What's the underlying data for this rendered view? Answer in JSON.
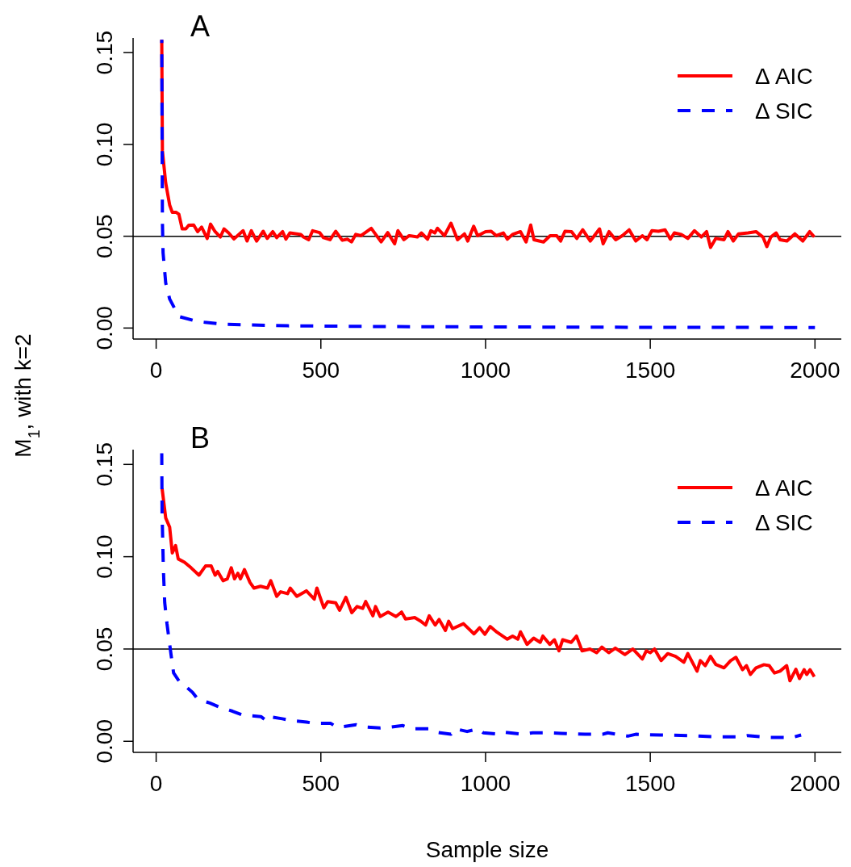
{
  "chart_data": [
    {
      "type": "line",
      "title": "A",
      "ylabel": "M$_{1}$, with k=2",
      "xlim": [
        -70,
        2080
      ],
      "ylim": [
        -0.006,
        0.158
      ],
      "xticks": [
        0,
        500,
        1000,
        1500,
        2000
      ],
      "yticks": [
        {
          "value": 0,
          "label": "0.00"
        },
        {
          "value": 0.05,
          "label": "0.05"
        },
        {
          "value": 0.1,
          "label": "0.10"
        },
        {
          "value": 0.15,
          "label": "0.15"
        }
      ],
      "legend": "top right",
      "ref_lines": [
        {
          "axis": "y",
          "value": 0.05,
          "color": "#000000"
        }
      ],
      "series": [
        {
          "name": "Δ AIC",
          "color": "#ff0000",
          "line_style": "solid",
          "x": [
            17,
            19,
            29,
            41,
            49,
            61,
            69,
            79,
            90,
            99,
            114,
            126,
            138,
            155,
            165,
            179,
            195,
            206,
            220,
            236,
            264,
            276,
            289,
            305,
            325,
            337,
            354,
            366,
            384,
            394,
            406,
            439,
            447,
            463,
            475,
            496,
            508,
            528,
            545,
            565,
            581,
            593,
            606,
            622,
            653,
            683,
            703,
            724,
            734,
            752,
            768,
            793,
            805,
            824,
            834,
            846,
            854,
            875,
            895,
            915,
            936,
            946,
            964,
            976,
            1000,
            1017,
            1033,
            1054,
            1066,
            1082,
            1106,
            1123,
            1137,
            1147,
            1176,
            1196,
            1216,
            1228,
            1241,
            1261,
            1277,
            1295,
            1318,
            1346,
            1357,
            1375,
            1395,
            1415,
            1436,
            1456,
            1476,
            1490,
            1505,
            1525,
            1545,
            1561,
            1573,
            1594,
            1614,
            1634,
            1655,
            1671,
            1683,
            1699,
            1724,
            1736,
            1752,
            1768,
            1797,
            1821,
            1842,
            1854,
            1866,
            1882,
            1894,
            1915,
            1939,
            1963,
            1984,
            1998
          ],
          "values": [
            0.157,
            0.0965,
            0.079,
            0.067,
            0.063,
            0.063,
            0.062,
            0.054,
            0.054,
            0.056,
            0.0561,
            0.0525,
            0.055,
            0.0488,
            0.0566,
            0.0525,
            0.0496,
            0.054,
            0.0518,
            0.0485,
            0.053,
            0.0474,
            0.053,
            0.0474,
            0.0527,
            0.0488,
            0.0525,
            0.0492,
            0.0525,
            0.0484,
            0.0518,
            0.051,
            0.0496,
            0.0481,
            0.053,
            0.052,
            0.0492,
            0.0481,
            0.0527,
            0.0478,
            0.0484,
            0.0469,
            0.051,
            0.0503,
            0.0543,
            0.0469,
            0.052,
            0.0459,
            0.053,
            0.0481,
            0.0503,
            0.0496,
            0.0518,
            0.0484,
            0.053,
            0.0518,
            0.0543,
            0.0503,
            0.0571,
            0.0481,
            0.0513,
            0.0474,
            0.0554,
            0.0503,
            0.0525,
            0.0527,
            0.0503,
            0.0518,
            0.0484,
            0.051,
            0.0525,
            0.0469,
            0.0561,
            0.0481,
            0.0469,
            0.0503,
            0.0503,
            0.0474,
            0.0527,
            0.0525,
            0.0488,
            0.0535,
            0.0474,
            0.054,
            0.0459,
            0.0525,
            0.0481,
            0.0503,
            0.0535,
            0.0474,
            0.0503,
            0.0481,
            0.053,
            0.0527,
            0.0535,
            0.0484,
            0.0518,
            0.051,
            0.0488,
            0.053,
            0.0496,
            0.0525,
            0.0439,
            0.0488,
            0.0481,
            0.0525,
            0.0474,
            0.0513,
            0.0518,
            0.0525,
            0.0496,
            0.0444,
            0.0496,
            0.0518,
            0.0481,
            0.0474,
            0.0513,
            0.0474,
            0.0525,
            0.0496
          ]
        },
        {
          "name": "Δ SIC",
          "color": "#0000ff",
          "line_style": "dashed",
          "x": [
            17,
            19,
            21,
            29,
            41,
            69,
            126,
            212,
            400,
            700,
            1000,
            1500,
            2000
          ],
          "values": [
            0.157,
            0.058,
            0.041,
            0.0246,
            0.0158,
            0.0063,
            0.0035,
            0.002,
            0.0012,
            0.0008,
            0.0006,
            0.0004,
            0.0003
          ]
        }
      ]
    },
    {
      "type": "line",
      "title": "B",
      "xlabel": "Sample size",
      "xlim": [
        -70,
        2080
      ],
      "ylim": [
        -0.006,
        0.158
      ],
      "xticks": [
        0,
        500,
        1000,
        1500,
        2000
      ],
      "yticks": [
        {
          "value": 0,
          "label": "0.00"
        },
        {
          "value": 0.05,
          "label": "0.05"
        },
        {
          "value": 0.1,
          "label": "0.10"
        },
        {
          "value": 0.15,
          "label": "0.15"
        }
      ],
      "legend": "top right",
      "ref_lines": [
        {
          "axis": "y",
          "value": 0.05,
          "color": "#000000"
        }
      ],
      "series": [
        {
          "name": "Δ AIC",
          "color": "#ff0000",
          "line_style": "solid",
          "x": [
            18,
            29,
            41,
            49,
            59,
            67,
            86,
            106,
            130,
            150,
            167,
            179,
            187,
            203,
            216,
            228,
            238,
            248,
            256,
            268,
            285,
            297,
            317,
            338,
            348,
            366,
            378,
            399,
            407,
            427,
            456,
            480,
            488,
            509,
            521,
            545,
            557,
            576,
            594,
            610,
            627,
            636,
            658,
            666,
            680,
            704,
            728,
            745,
            757,
            785,
            802,
            818,
            829,
            847,
            859,
            878,
            888,
            900,
            933,
            965,
            982,
            998,
            1014,
            1034,
            1066,
            1082,
            1098,
            1106,
            1126,
            1146,
            1166,
            1174,
            1195,
            1209,
            1223,
            1234,
            1260,
            1276,
            1293,
            1317,
            1337,
            1353,
            1374,
            1394,
            1423,
            1447,
            1476,
            1488,
            1500,
            1513,
            1533,
            1553,
            1577,
            1602,
            1614,
            1642,
            1652,
            1667,
            1683,
            1699,
            1724,
            1744,
            1760,
            1780,
            1792,
            1804,
            1821,
            1845,
            1861,
            1877,
            1894,
            1914,
            1924,
            1942,
            1953,
            1967,
            1975,
            1985,
            1998
          ],
          "values": [
            0.137,
            0.121,
            0.116,
            0.102,
            0.106,
            0.0988,
            0.097,
            0.094,
            0.09,
            0.095,
            0.095,
            0.09,
            0.092,
            0.087,
            0.088,
            0.094,
            0.088,
            0.091,
            0.088,
            0.093,
            0.086,
            0.083,
            0.084,
            0.083,
            0.087,
            0.0785,
            0.081,
            0.08,
            0.083,
            0.0785,
            0.0815,
            0.077,
            0.083,
            0.0723,
            0.0757,
            0.075,
            0.071,
            0.078,
            0.0697,
            0.073,
            0.072,
            0.0757,
            0.068,
            0.073,
            0.0676,
            0.07,
            0.0676,
            0.07,
            0.0663,
            0.067,
            0.0652,
            0.063,
            0.068,
            0.063,
            0.066,
            0.06,
            0.065,
            0.061,
            0.0637,
            0.0582,
            0.0615,
            0.058,
            0.0622,
            0.0592,
            0.0553,
            0.057,
            0.0553,
            0.0593,
            0.0525,
            0.0559,
            0.0536,
            0.057,
            0.0525,
            0.055,
            0.049,
            0.055,
            0.0536,
            0.057,
            0.049,
            0.05,
            0.048,
            0.051,
            0.048,
            0.0505,
            0.047,
            0.05,
            0.0446,
            0.049,
            0.048,
            0.05,
            0.0437,
            0.0475,
            0.046,
            0.0428,
            0.0475,
            0.038,
            0.0437,
            0.041,
            0.046,
            0.0416,
            0.0398,
            0.0437,
            0.0455,
            0.0388,
            0.041,
            0.0362,
            0.0398,
            0.0415,
            0.041,
            0.037,
            0.038,
            0.041,
            0.0328,
            0.039,
            0.034,
            0.0388,
            0.0362,
            0.0388,
            0.035
          ]
        },
        {
          "name": "Δ SIC",
          "color": "#0000ff",
          "line_style": "dashed",
          "x": [
            17,
            18,
            22,
            26,
            33,
            45,
            53,
            69,
            110,
            126,
            163,
            192,
            232,
            265,
            318,
            334,
            343,
            383,
            412,
            457,
            481,
            530,
            550,
            607,
            631,
            680,
            704,
            749,
            777,
            830,
            847,
            895,
            908,
            944,
            977,
            993,
            1046,
            1058,
            1115,
            1143,
            1188,
            1229,
            1302,
            1355,
            1371,
            1432,
            1456,
            1530,
            1616,
            1705,
            1774,
            1795,
            1864,
            1929,
            1958
          ],
          "values": [
            0.156,
            0.1236,
            0.0928,
            0.0751,
            0.0635,
            0.0472,
            0.037,
            0.0328,
            0.0266,
            0.0229,
            0.0207,
            0.0185,
            0.0163,
            0.0141,
            0.0134,
            0.0112,
            0.0134,
            0.0122,
            0.0112,
            0.0104,
            0.0097,
            0.0097,
            0.0075,
            0.009,
            0.0078,
            0.0072,
            0.0075,
            0.0085,
            0.0068,
            0.0068,
            0.005,
            0.0038,
            0.0068,
            0.0053,
            0.0068,
            0.0046,
            0.0038,
            0.0049,
            0.0038,
            0.0046,
            0.0046,
            0.0043,
            0.0038,
            0.0038,
            0.0046,
            0.0028,
            0.0038,
            0.0034,
            0.0031,
            0.0024,
            0.0024,
            0.0031,
            0.0021,
            0.002,
            0.0034
          ]
        }
      ]
    }
  ]
}
